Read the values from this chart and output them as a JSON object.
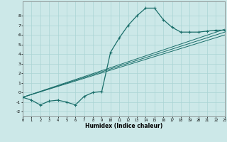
{
  "xlabel": "Humidex (Indice chaleur)",
  "ylabel": "",
  "bg_color": "#cce8e8",
  "line_color": "#1a6e6a",
  "grid_color": "#aad4d4",
  "xlim": [
    0,
    23
  ],
  "ylim": [
    -2.5,
    9.5
  ],
  "xticks": [
    0,
    1,
    2,
    3,
    4,
    5,
    6,
    7,
    8,
    9,
    10,
    11,
    12,
    13,
    14,
    15,
    16,
    17,
    18,
    19,
    20,
    21,
    22,
    23
  ],
  "yticks": [
    -2,
    -1,
    0,
    1,
    2,
    3,
    4,
    5,
    6,
    7,
    8
  ],
  "curve1_x": [
    0,
    1,
    2,
    3,
    4,
    5,
    6,
    7,
    8,
    9,
    10,
    11,
    12,
    13,
    14,
    15,
    16,
    17,
    18,
    19,
    20,
    21,
    22,
    23
  ],
  "curve1_y": [
    -0.5,
    -0.8,
    -1.3,
    -0.9,
    -0.8,
    -1.0,
    -1.3,
    -0.4,
    0.0,
    0.1,
    4.2,
    5.7,
    7.0,
    8.0,
    8.8,
    8.8,
    7.6,
    6.8,
    6.3,
    6.3,
    6.3,
    6.4,
    6.5,
    6.5
  ],
  "line1_x": [
    0,
    23
  ],
  "line1_y": [
    -0.5,
    6.6
  ],
  "line2_x": [
    0,
    23
  ],
  "line2_y": [
    -0.5,
    6.3
  ],
  "line3_x": [
    0,
    23
  ],
  "line3_y": [
    -0.5,
    6.0
  ]
}
